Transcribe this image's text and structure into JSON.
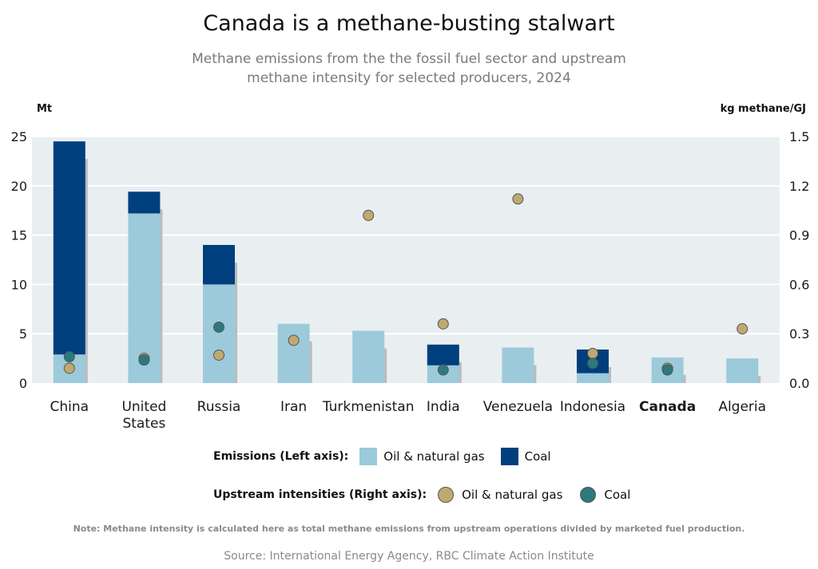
{
  "chart_data": {
    "type": "bar",
    "title": "Canada is a methane-busting stalwart",
    "subtitle": "Methane emissions from the the fossil fuel sector and upstream methane intensity for selected producers, 2024",
    "left_axis_unit": "Mt",
    "right_axis_unit": "kg methane/GJ",
    "left_ylim": [
      0,
      25
    ],
    "left_ticks": [
      "0",
      "5",
      "10",
      "15",
      "20",
      "25"
    ],
    "right_ylim": [
      0,
      1.5
    ],
    "right_ticks": [
      "0.0",
      "0.3",
      "0.6",
      "0.9",
      "1.2",
      "1.5"
    ],
    "grid": true,
    "categories": [
      "China",
      "United States",
      "Russia",
      "Iran",
      "Turkmenistan",
      "India",
      "Venezuela",
      "Indonesia",
      "Canada",
      "Algeria"
    ],
    "highlight_category": "Canada",
    "bar_series": [
      {
        "name": "Oil & natural gas",
        "color": "#9ccadb",
        "values": [
          2.9,
          17.2,
          10.0,
          6.0,
          5.3,
          1.8,
          3.6,
          1.0,
          2.6,
          2.5
        ]
      },
      {
        "name": "Coal",
        "color": "#003f7d",
        "values": [
          21.6,
          2.2,
          4.0,
          0,
          0,
          2.1,
          0,
          2.4,
          0,
          0
        ]
      }
    ],
    "point_series": [
      {
        "name": "Oil & natural gas",
        "color": "#bfa970",
        "values": [
          0.09,
          0.15,
          0.17,
          0.26,
          1.02,
          0.36,
          1.12,
          0.18,
          0.09,
          0.33
        ]
      },
      {
        "name": "Coal",
        "color": "#2b7a7e",
        "values": [
          0.16,
          0.14,
          0.34,
          null,
          null,
          0.08,
          null,
          0.12,
          0.08,
          null
        ]
      }
    ]
  },
  "legend": {
    "emissions_heading": "Emissions (Left axis):",
    "emissions_items": [
      "Oil & natural gas",
      "Coal"
    ],
    "intensity_heading": "Upstream intensities (Right axis):",
    "intensity_items": [
      "Oil & natural gas",
      "Coal"
    ]
  },
  "note": "Note: Methane intensity is calculated here as total methane emissions from upstream operations divided by marketed fuel production.",
  "source": "Source: International Energy Agency, RBC Climate Action Institute"
}
